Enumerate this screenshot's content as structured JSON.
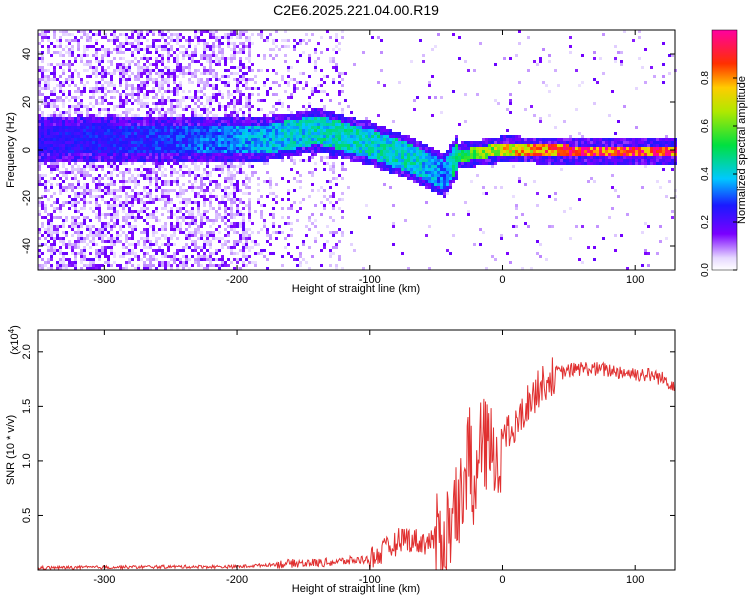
{
  "title": "C2E6.2025.221.04.00.R19",
  "colors": {
    "snr_line": "#e03030",
    "axis": "#000000",
    "spectrogram_background": "#ffffff"
  },
  "chart_data": [
    {
      "type": "heatmap",
      "xlabel": "Height of straight line (km)",
      "ylabel": "Frequency (Hz)",
      "xlim": [
        -350,
        130
      ],
      "ylim": [
        -50,
        50
      ],
      "x_ticks": [
        "-300",
        "-200",
        "-100",
        "0",
        "100"
      ],
      "y_ticks": [
        "40",
        "20",
        "0",
        "-20",
        "-40"
      ],
      "colorbar": {
        "label": "Normalized spectral amplitude",
        "range": [
          0,
          1
        ],
        "ticks": [
          "0.0",
          "0.2",
          "0.4",
          "0.6",
          "0.8"
        ],
        "colormap": "rainbow"
      },
      "band": {
        "description_points": [
          {
            "x": -350,
            "center_hz": 5,
            "amp": 0.25
          },
          {
            "x": -250,
            "center_hz": 5,
            "amp": 0.3
          },
          {
            "x": -180,
            "center_hz": 5,
            "amp": 0.4
          },
          {
            "x": -140,
            "center_hz": 9,
            "amp": 0.45
          },
          {
            "x": -100,
            "center_hz": 3,
            "amp": 0.45
          },
          {
            "x": -70,
            "center_hz": -3,
            "amp": 0.45
          },
          {
            "x": -45,
            "center_hz": -10,
            "amp": 0.35
          },
          {
            "x": -35,
            "center_hz": -2,
            "amp": 0.55
          },
          {
            "x": 0,
            "center_hz": 1,
            "amp": 0.75
          },
          {
            "x": 50,
            "center_hz": 0,
            "amp": 0.95
          },
          {
            "x": 130,
            "center_hz": 0,
            "amp": 0.95
          }
        ]
      }
    },
    {
      "type": "line",
      "xlabel": "Height of straight line (km)",
      "ylabel": "SNR (10 * v/v)",
      "y_multiplier": "(x10",
      "y_multiplier_exp": "4",
      "y_multiplier_close": ")",
      "xlim": [
        -350,
        130
      ],
      "ylim": [
        0,
        2.2
      ],
      "x_ticks": [
        "-300",
        "-200",
        "-100",
        "0",
        "100"
      ],
      "y_ticks": [
        "0.5",
        "1.0",
        "1.5",
        "2.0"
      ],
      "series": [
        {
          "x": [
            -350,
            -250,
            -200,
            -160,
            -130,
            -100,
            -85,
            -75,
            -60,
            -45,
            -38,
            -32,
            -28,
            -25,
            -22,
            -18,
            -12,
            -5,
            0,
            10,
            20,
            30,
            40,
            60,
            80,
            100,
            115,
            130
          ],
          "y": [
            0.02,
            0.03,
            0.03,
            0.06,
            0.07,
            0.1,
            0.2,
            0.3,
            0.25,
            0.3,
            0.45,
            0.6,
            0.9,
            1.2,
            0.5,
            1.1,
            1.15,
            1.0,
            1.2,
            1.3,
            1.55,
            1.7,
            1.8,
            1.85,
            1.83,
            1.8,
            1.78,
            1.7
          ]
        }
      ]
    }
  ]
}
